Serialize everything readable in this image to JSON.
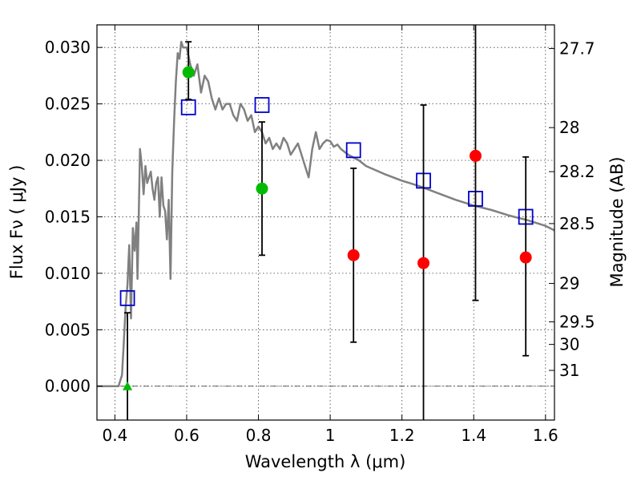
{
  "chart_data": {
    "type": "scatter",
    "title": "",
    "xlabel": "Wavelength  λ (μm)",
    "ylabel": "Flux  Fν  ( μJy )",
    "y2label": "Magnitude (AB)",
    "xlim": [
      0.35,
      1.625
    ],
    "ylim": [
      -0.003,
      0.032
    ],
    "grid": true,
    "x_ticks": [
      0.4,
      0.6,
      0.8,
      1.0,
      1.2,
      1.4,
      1.6
    ],
    "x_tick_labels": [
      "0.4",
      "0.6",
      "0.8",
      "1",
      "1.2",
      "1.4",
      "1.6"
    ],
    "y_ticks": [
      0.0,
      0.005,
      0.01,
      0.015,
      0.02,
      0.025,
      0.03
    ],
    "y_tick_labels": [
      "0.000",
      "0.005",
      "0.010",
      "0.015",
      "0.020",
      "0.025",
      "0.030"
    ],
    "y2_ticks": [
      {
        "label": "27.7",
        "flux": 0.0299
      },
      {
        "label": "28",
        "flux": 0.0229
      },
      {
        "label": "28.2",
        "flux": 0.019
      },
      {
        "label": "28.5",
        "flux": 0.0144
      },
      {
        "label": "29",
        "flux": 0.0091
      },
      {
        "label": "29.5",
        "flux": 0.0057
      },
      {
        "label": "30",
        "flux": 0.0037
      },
      {
        "label": "31",
        "flux": 0.0014
      }
    ],
    "series": [
      {
        "type": "line",
        "color": "#808080",
        "x": [
          0.35,
          0.41,
          0.415,
          0.42,
          0.425,
          0.43,
          0.435,
          0.44,
          0.445,
          0.45,
          0.455,
          0.46,
          0.463,
          0.466,
          0.47,
          0.475,
          0.48,
          0.485,
          0.49,
          0.495,
          0.5,
          0.505,
          0.51,
          0.515,
          0.52,
          0.525,
          0.53,
          0.535,
          0.54,
          0.545,
          0.55,
          0.555,
          0.56,
          0.565,
          0.57,
          0.575,
          0.58,
          0.585,
          0.59,
          0.6,
          0.61,
          0.62,
          0.63,
          0.64,
          0.65,
          0.66,
          0.67,
          0.68,
          0.69,
          0.7,
          0.71,
          0.72,
          0.73,
          0.74,
          0.75,
          0.76,
          0.77,
          0.78,
          0.79,
          0.8,
          0.81,
          0.82,
          0.83,
          0.84,
          0.85,
          0.86,
          0.87,
          0.88,
          0.89,
          0.9,
          0.91,
          0.92,
          0.93,
          0.94,
          0.95,
          0.96,
          0.97,
          0.98,
          0.99,
          1.0,
          1.01,
          1.02,
          1.03,
          1.05,
          1.08,
          1.1,
          1.15,
          1.2,
          1.25,
          1.3,
          1.35,
          1.4,
          1.45,
          1.5,
          1.55,
          1.6,
          1.625
        ],
        "y": [
          0.0,
          0.0,
          0.0005,
          0.001,
          0.004,
          0.007,
          0.009,
          0.0125,
          0.006,
          0.014,
          0.012,
          0.0145,
          0.0095,
          0.014,
          0.021,
          0.0195,
          0.017,
          0.0195,
          0.018,
          0.0185,
          0.019,
          0.0175,
          0.0165,
          0.018,
          0.0185,
          0.015,
          0.0185,
          0.016,
          0.0155,
          0.013,
          0.0165,
          0.0095,
          0.019,
          0.0235,
          0.027,
          0.0295,
          0.029,
          0.0305,
          0.03,
          0.03,
          0.0285,
          0.0275,
          0.0285,
          0.026,
          0.0275,
          0.027,
          0.0255,
          0.0245,
          0.0255,
          0.0245,
          0.025,
          0.025,
          0.024,
          0.0235,
          0.025,
          0.0245,
          0.0235,
          0.024,
          0.0225,
          0.023,
          0.0225,
          0.0215,
          0.022,
          0.021,
          0.0215,
          0.021,
          0.022,
          0.0215,
          0.0205,
          0.021,
          0.0215,
          0.0205,
          0.0195,
          0.0185,
          0.021,
          0.0225,
          0.021,
          0.0215,
          0.0218,
          0.0217,
          0.0212,
          0.0214,
          0.021,
          0.0205,
          0.02,
          0.0195,
          0.0188,
          0.0182,
          0.0177,
          0.0171,
          0.0165,
          0.016,
          0.0156,
          0.0151,
          0.0147,
          0.0142,
          0.0138
        ]
      },
      {
        "type": "squares",
        "color": "#0000cc",
        "x": [
          0.435,
          0.605,
          0.81,
          1.065,
          1.26,
          1.405,
          1.545
        ],
        "y": [
          0.0078,
          0.0247,
          0.0249,
          0.0209,
          0.0182,
          0.0166,
          0.015
        ]
      },
      {
        "type": "points",
        "x": [
          0.435,
          0.605,
          0.81,
          1.065,
          1.26,
          1.405,
          1.545
        ],
        "y": [
          0.0,
          0.0278,
          0.0175,
          0.0116,
          0.0109,
          0.0204,
          0.0114
        ],
        "yerr_low": [
          -0.003,
          0.0254,
          0.0116,
          0.0039,
          -0.003,
          0.0076,
          0.0027
        ],
        "yerr_high": [
          0.0065,
          0.0305,
          0.0234,
          0.0193,
          0.0249,
          0.032,
          0.0203
        ],
        "markers": [
          "triangle",
          "circle",
          "circle",
          "circle",
          "circle",
          "circle",
          "circle"
        ],
        "colors": [
          "#00bb00",
          "#00bb00",
          "#00bb00",
          "#ff0000",
          "#ff0000",
          "#ff0000",
          "#ff0000"
        ]
      }
    ]
  }
}
